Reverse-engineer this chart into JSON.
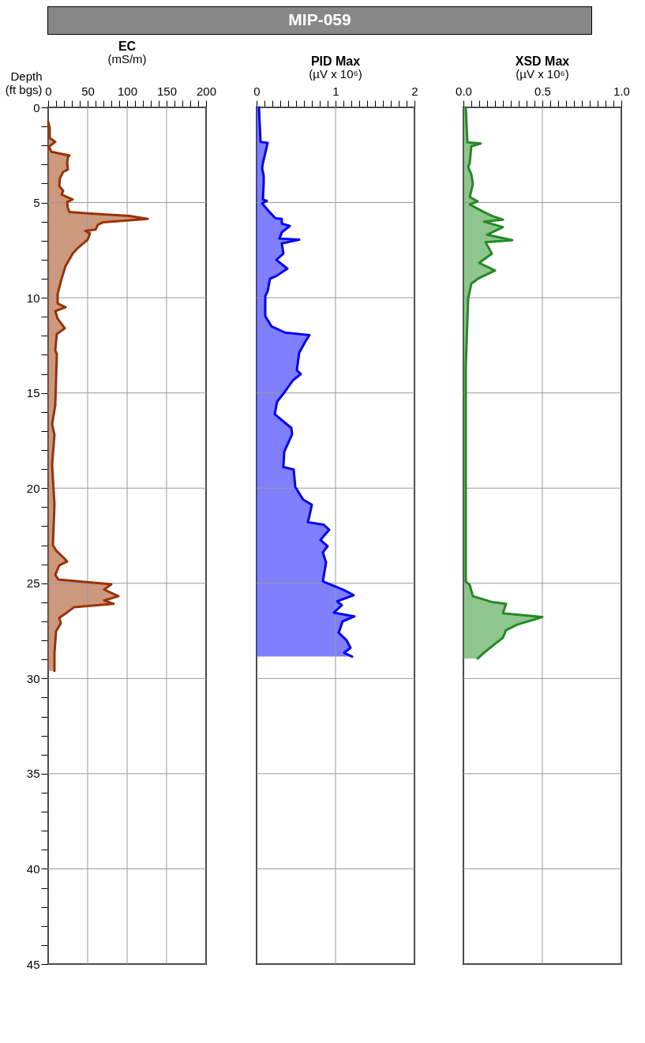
{
  "chart_data": [
    {
      "type": "area",
      "orientation": "horizontal",
      "annotations": [
        "MIP-059"
      ],
      "title": "EC",
      "subtitle": "(mS/m)",
      "ylabel": "Depth\n(ft bgs)",
      "grid": true,
      "x": [
        0.75,
        1.08,
        1.61,
        1.81,
        2.07,
        2.33,
        2.53,
        2.6,
        2.93,
        3.26,
        3.39,
        3.72,
        4.12,
        4.38,
        4.58,
        4.71,
        4.84,
        4.97,
        5.3,
        5.5,
        5.57,
        5.7,
        5.86,
        6.03,
        6.16,
        6.42,
        6.49,
        6.62,
        6.95,
        7.41,
        7.68,
        8.34,
        9.0,
        9.79,
        10.3,
        10.5,
        10.7,
        11.1,
        11.6,
        11.9,
        12.75,
        12.96,
        15.65,
        16.64,
        17.2,
        18.76,
        20.88,
        23.0,
        23.27,
        23.63,
        23.85,
        24.06,
        24.55,
        24.8,
        24.9,
        25.05,
        25.33,
        25.68,
        25.9,
        26.08,
        26.25,
        26.53,
        26.81,
        27.1,
        27.52,
        28.65,
        29.6
      ],
      "series": [
        {
          "color": "#993300",
          "values": [
            0,
            2,
            2,
            9,
            1,
            4,
            27,
            25,
            24,
            25,
            19,
            15,
            14,
            19,
            17,
            24,
            31,
            24,
            25,
            27,
            50,
            103,
            126,
            70,
            63,
            60,
            47,
            53,
            50,
            37,
            31,
            22,
            17,
            12,
            12,
            22,
            9,
            12,
            21,
            11,
            9,
            11,
            9,
            5,
            8,
            5,
            8,
            6,
            10,
            19,
            24,
            14,
            9,
            13,
            38,
            80,
            71,
            89,
            71,
            83,
            33,
            24,
            14,
            16,
            10,
            8,
            8
          ]
        }
      ],
      "xlim": [
        0,
        200
      ],
      "xticks": [
        0,
        {
          "value": 10,
          "label": null
        },
        {
          "value": 20,
          "label": null
        },
        {
          "value": 30,
          "label": null
        },
        {
          "value": 40,
          "label": null
        },
        50,
        {
          "value": 60,
          "label": null
        },
        {
          "value": 70,
          "label": null
        },
        {
          "value": 80,
          "label": null
        },
        {
          "value": 90,
          "label": null
        },
        100,
        {
          "value": 110,
          "label": null
        },
        {
          "value": 120,
          "label": null
        },
        {
          "value": 130,
          "label": null
        },
        {
          "value": 140,
          "label": null
        },
        150,
        {
          "value": 160,
          "label": null
        },
        {
          "value": 170,
          "label": null
        },
        {
          "value": 180,
          "label": null
        },
        {
          "value": 190,
          "label": null
        },
        200
      ],
      "ylim": [
        45,
        0
      ],
      "yticks": [
        0,
        {
          "value": 1,
          "label": null
        },
        {
          "value": 2,
          "label": null
        },
        {
          "value": 3,
          "label": null
        },
        {
          "value": 4,
          "label": null
        },
        5,
        {
          "value": 6,
          "label": null
        },
        {
          "value": 7,
          "label": null
        },
        {
          "value": 8,
          "label": null
        },
        {
          "value": 9,
          "label": null
        },
        10,
        {
          "value": 11,
          "label": null
        },
        {
          "value": 12,
          "label": null
        },
        {
          "value": 13,
          "label": null
        },
        {
          "value": 14,
          "label": null
        },
        15,
        {
          "value": 16,
          "label": null
        },
        {
          "value": 17,
          "label": null
        },
        {
          "value": 18,
          "label": null
        },
        {
          "value": 19,
          "label": null
        },
        20,
        {
          "value": 21,
          "label": null
        },
        {
          "value": 22,
          "label": null
        },
        {
          "value": 23,
          "label": null
        },
        {
          "value": 24,
          "label": null
        },
        25,
        {
          "value": 26,
          "label": null
        },
        {
          "value": 27,
          "label": null
        },
        {
          "value": 28,
          "label": null
        },
        {
          "value": 29,
          "label": null
        },
        30,
        {
          "value": 31,
          "label": null
        },
        {
          "value": 32,
          "label": null
        },
        {
          "value": 33,
          "label": null
        },
        {
          "value": 34,
          "label": null
        },
        35,
        {
          "value": 36,
          "label": null
        },
        {
          "value": 37,
          "label": null
        },
        {
          "value": 38,
          "label": null
        },
        {
          "value": 39,
          "label": null
        },
        40,
        {
          "value": 41,
          "label": null
        },
        {
          "value": 42,
          "label": null
        },
        {
          "value": 43,
          "label": null
        },
        {
          "value": 44,
          "label": null
        },
        45
      ]
    },
    {
      "type": "area",
      "orientation": "horizontal",
      "title": "PID Max",
      "subtitle": "(µV x 10⁶)",
      "grid": true,
      "tick_labels": "x",
      "x": [
        0,
        1.81,
        1.87,
        2.93,
        3.19,
        3.59,
        3.98,
        4.84,
        4.91,
        5.04,
        5.43,
        5.83,
        5.86,
        6.1,
        6.23,
        6.56,
        6.89,
        6.95,
        7.15,
        7.68,
        8.01,
        8.47,
        8.86,
        9.0,
        9.66,
        9.92,
        10.97,
        11.5,
        11.83,
        11.96,
        12.29,
        12.89,
        13.81,
        14.01,
        14.34,
        14.93,
        15.46,
        16.12,
        16.84,
        17.17,
        18.1,
        18.89,
        19.02,
        19.94,
        20.6,
        20.87,
        21.26,
        21.79,
        21.92,
        22.19,
        22.72,
        23.05,
        23.38,
        23.91,
        24.9,
        25.36,
        25.62,
        25.95,
        26.15,
        26.54,
        26.74,
        27.0,
        27.6,
        27.99,
        28.39,
        28.65,
        28.85
      ],
      "series": [
        {
          "color": "#0000ff",
          "values": [
            0.03,
            0.05,
            0.14,
            0.08,
            0.07,
            0.09,
            0.09,
            0.08,
            0.13,
            0.07,
            0.15,
            0.24,
            0.32,
            0.32,
            0.42,
            0.32,
            0.29,
            0.54,
            0.32,
            0.34,
            0.25,
            0.39,
            0.25,
            0.17,
            0.14,
            0.11,
            0.11,
            0.19,
            0.36,
            0.67,
            0.62,
            0.54,
            0.51,
            0.56,
            0.46,
            0.36,
            0.26,
            0.23,
            0.44,
            0.45,
            0.35,
            0.34,
            0.47,
            0.49,
            0.59,
            0.7,
            0.68,
            0.65,
            0.85,
            0.92,
            0.81,
            0.9,
            0.84,
            0.88,
            0.84,
            1.11,
            1.23,
            1.02,
            1.08,
            0.98,
            1.24,
            1.09,
            1.04,
            1.14,
            1.19,
            1.11,
            1.21
          ]
        }
      ],
      "xlim": [
        0,
        2
      ],
      "xticks": [
        0,
        {
          "value": 0.1,
          "label": null
        },
        {
          "value": 0.2,
          "label": null
        },
        {
          "value": 0.3,
          "label": null
        },
        {
          "value": 0.4,
          "label": null
        },
        {
          "value": 0.5,
          "label": null
        },
        {
          "value": 0.6,
          "label": null
        },
        {
          "value": 0.7,
          "label": null
        },
        {
          "value": 0.8,
          "label": null
        },
        {
          "value": 0.9,
          "label": null
        },
        1,
        {
          "value": 1.1,
          "label": null
        },
        {
          "value": 1.2,
          "label": null
        },
        {
          "value": 1.3,
          "label": null
        },
        {
          "value": 1.4,
          "label": null
        },
        {
          "value": 1.5,
          "label": null
        },
        {
          "value": 1.6,
          "label": null
        },
        {
          "value": 1.7,
          "label": null
        },
        {
          "value": 1.8,
          "label": null
        },
        {
          "value": 1.9,
          "label": null
        },
        2
      ],
      "ylim": [
        45,
        0
      ],
      "yticks": [
        0,
        5,
        10,
        15,
        20,
        25,
        30,
        35,
        40,
        45
      ]
    },
    {
      "type": "area",
      "orientation": "horizontal",
      "title": "XSD Max",
      "subtitle": "(µV x 10⁶)",
      "grid": true,
      "tick_labels": "x",
      "x": [
        0,
        1.84,
        1.9,
        2.04,
        2.93,
        3.13,
        3.52,
        4.02,
        4.71,
        4.94,
        5.1,
        5.5,
        5.7,
        5.9,
        6.0,
        6.29,
        6.69,
        6.98,
        7.08,
        7.68,
        8.17,
        8.57,
        8.96,
        9.26,
        10.05,
        13.6,
        24.9,
        25.09,
        25.68,
        25.98,
        26.08,
        26.57,
        26.77,
        27.17,
        27.46,
        27.86,
        28.25,
        28.65,
        28.95
      ],
      "series": [
        {
          "color": "#228b22",
          "values": [
            0.015,
            0.025,
            0.11,
            0.05,
            0.04,
            0.03,
            0.05,
            0.06,
            0.04,
            0.09,
            0.04,
            0.13,
            0.18,
            0.25,
            0.13,
            0.25,
            0.15,
            0.31,
            0.14,
            0.18,
            0.1,
            0.2,
            0.1,
            0.05,
            0.03,
            0.015,
            0.015,
            0.04,
            0.06,
            0.18,
            0.27,
            0.25,
            0.5,
            0.34,
            0.27,
            0.25,
            0.19,
            0.13,
            0.09
          ]
        }
      ],
      "xlim": [
        0,
        1
      ],
      "xticks": [
        {
          "value": 0,
          "label": "0.0"
        },
        {
          "value": 0.05,
          "label": null
        },
        {
          "value": 0.1,
          "label": null
        },
        {
          "value": 0.15,
          "label": null
        },
        {
          "value": 0.2,
          "label": null
        },
        {
          "value": 0.25,
          "label": null
        },
        {
          "value": 0.3,
          "label": null
        },
        {
          "value": 0.35,
          "label": null
        },
        {
          "value": 0.4,
          "label": null
        },
        {
          "value": 0.45,
          "label": null
        },
        {
          "value": 0.5,
          "label": "0.5"
        },
        {
          "value": 0.55,
          "label": null
        },
        {
          "value": 0.6,
          "label": null
        },
        {
          "value": 0.65,
          "label": null
        },
        {
          "value": 0.7,
          "label": null
        },
        {
          "value": 0.75,
          "label": null
        },
        {
          "value": 0.8,
          "label": null
        },
        {
          "value": 0.85,
          "label": null
        },
        {
          "value": 0.9,
          "label": null
        },
        {
          "value": 0.95,
          "label": null
        },
        {
          "value": 1,
          "label": "1.0"
        }
      ],
      "ylim": [
        45,
        0
      ],
      "yticks": [
        0,
        5,
        10,
        15,
        20,
        25,
        30,
        35,
        40,
        45
      ]
    }
  ]
}
